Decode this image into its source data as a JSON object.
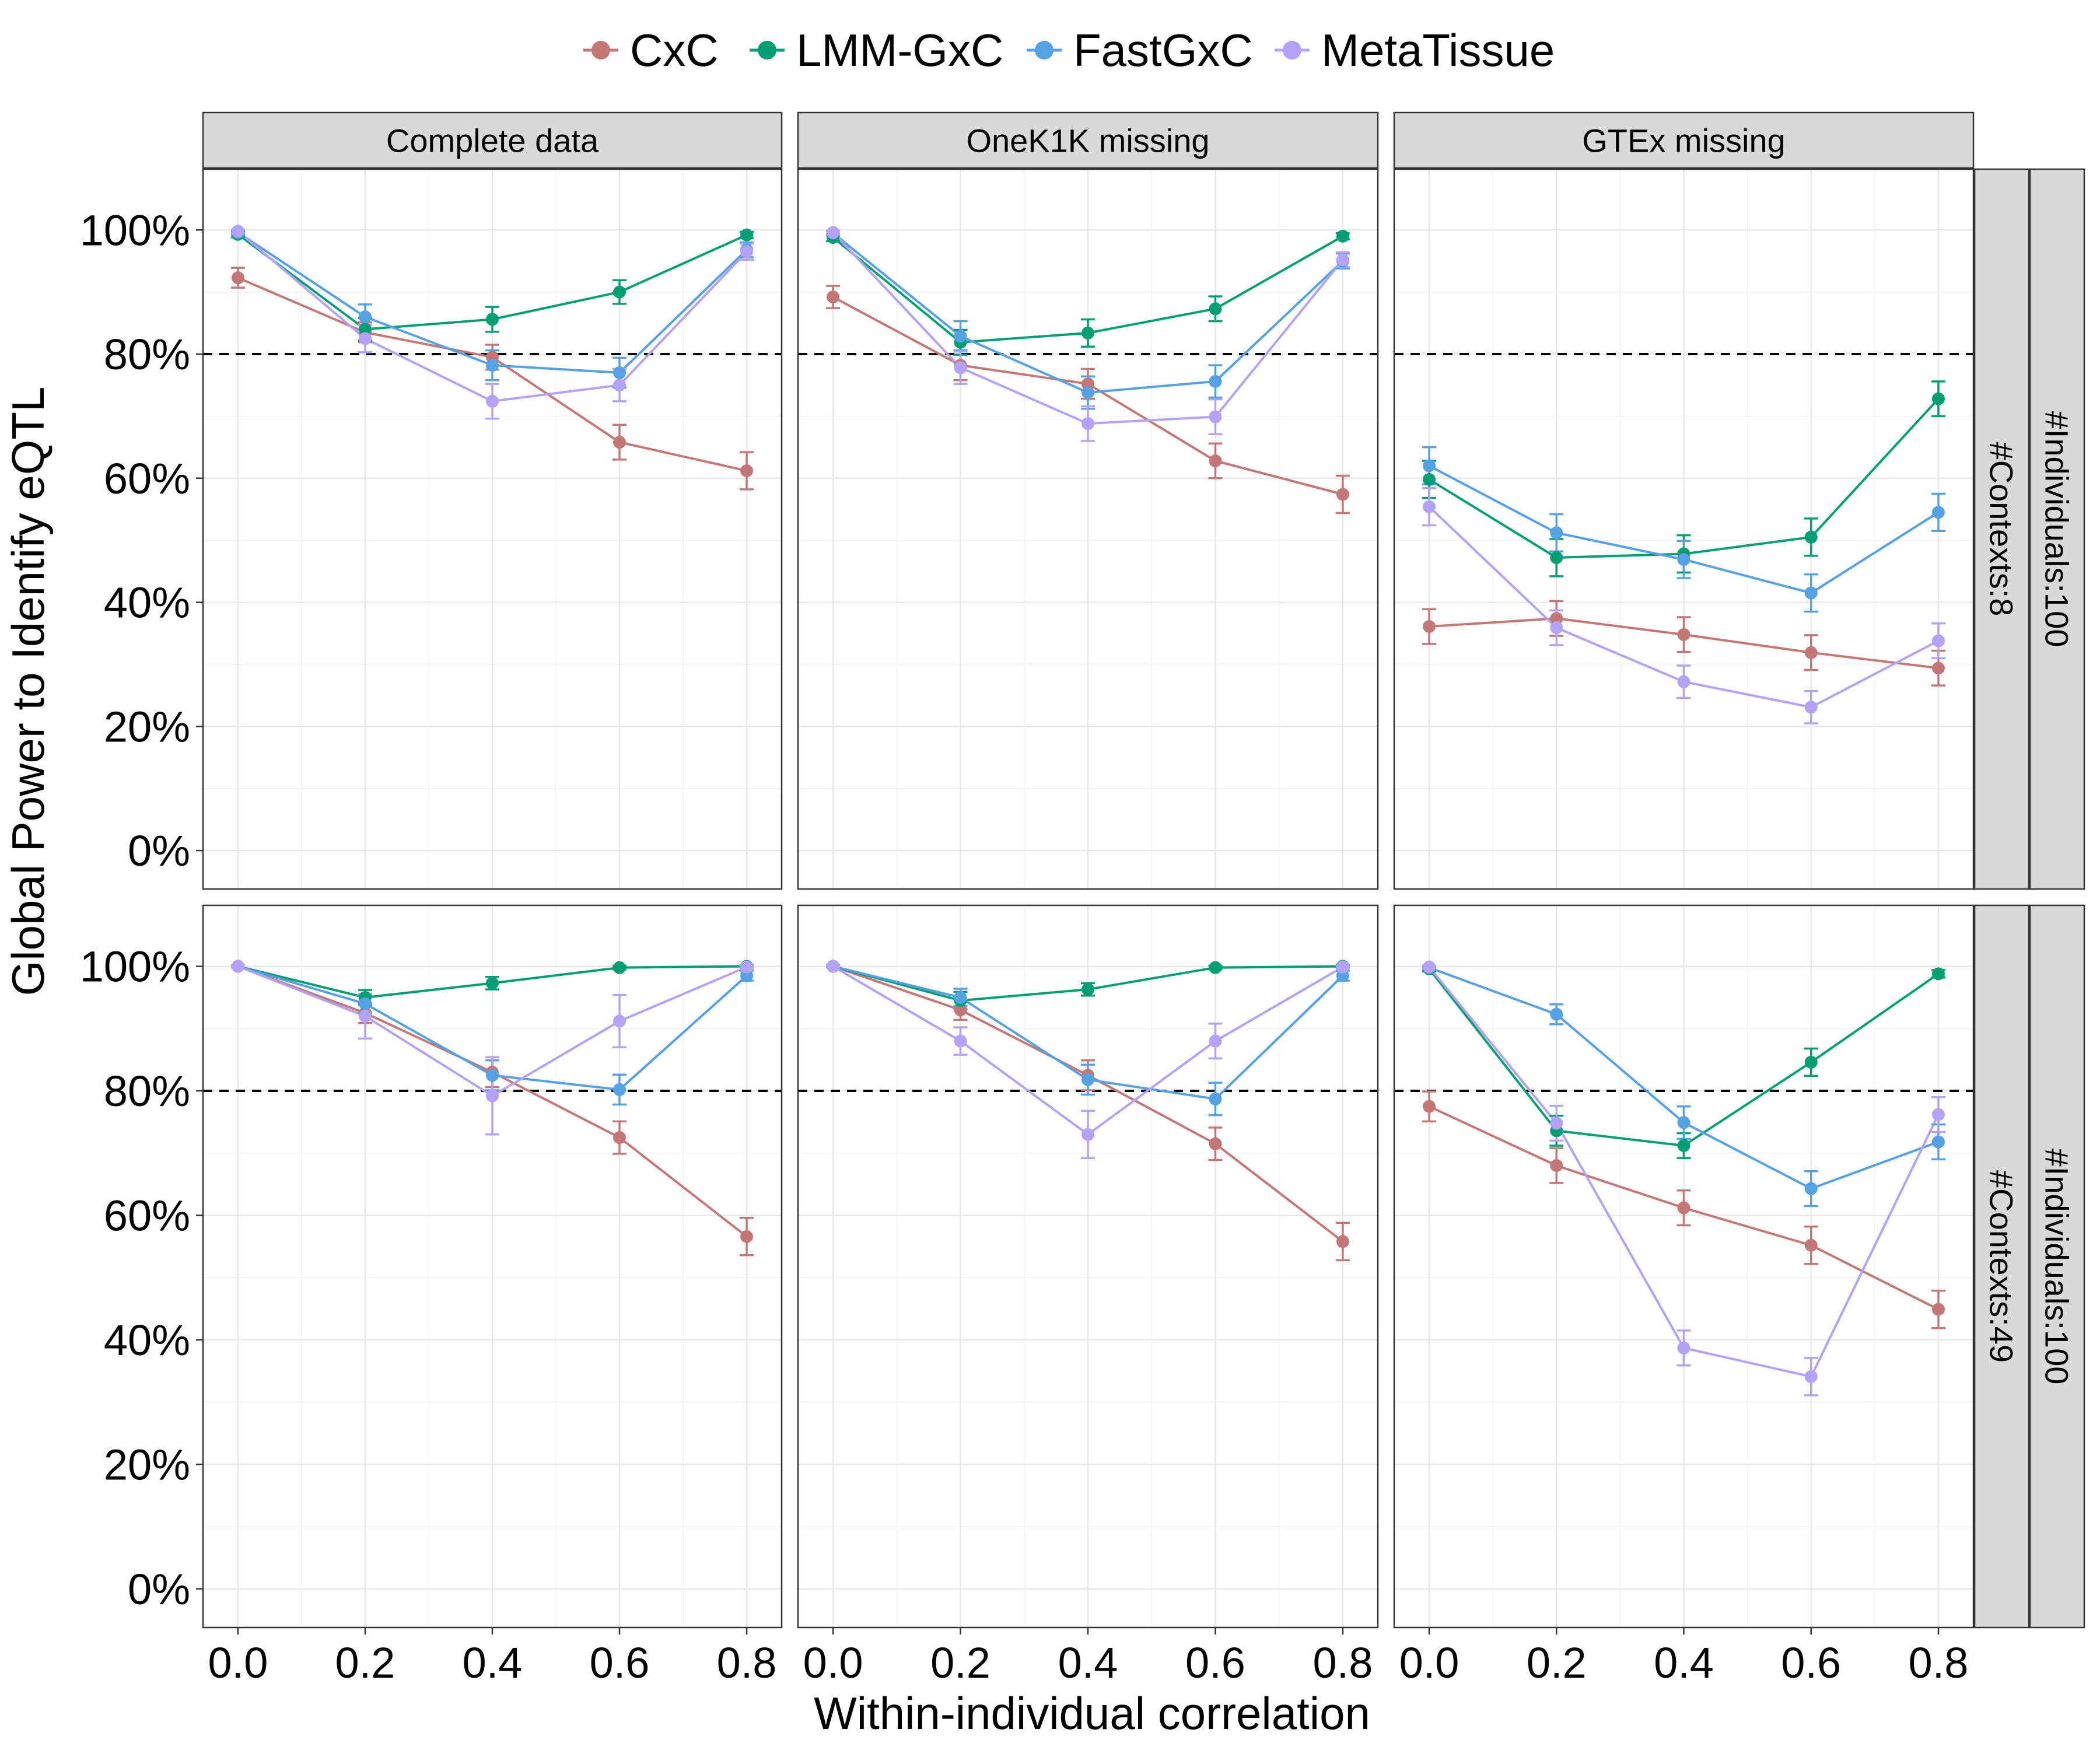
{
  "chart_data": {
    "type": "line",
    "xlabel": "Within-individual correlation",
    "ylabel": "Global Power to Identify eQTL",
    "x": [
      0.0,
      0.2,
      0.4,
      0.6,
      0.8
    ],
    "x_tick_labels": [
      "0.0",
      "0.2",
      "0.4",
      "0.6",
      "0.8"
    ],
    "ylim": [
      0,
      100
    ],
    "y_ticks": [
      0,
      20,
      40,
      60,
      80,
      100
    ],
    "y_tick_labels": [
      "0%",
      "20%",
      "40%",
      "60%",
      "80%",
      "100%"
    ],
    "reference_line": 80,
    "grid": true,
    "legend_position": "top",
    "legend": [
      "CxC",
      "LMM-GxC",
      "FastGxC",
      "MetaTissue"
    ],
    "colors": {
      "CxC": "#c47777",
      "LMM-GxC": "#009e73",
      "FastGxC": "#56a0e4",
      "MetaTissue": "#b3a2f5"
    },
    "columns": [
      "Complete data",
      "OneK1K missing",
      "GTEx missing"
    ],
    "rows": [
      {
        "inner_label": "#Contexts:8",
        "outer_label": "#Individuals:100"
      },
      {
        "inner_label": "#Contexts:49",
        "outer_label": "#Individuals:100"
      }
    ],
    "panels": [
      {
        "row": 0,
        "col": 0,
        "series": [
          {
            "name": "CxC",
            "values": [
              92.3,
              83.5,
              79.5,
              65.8,
              61.2
            ],
            "err": [
              1.6,
              1.6,
              2.0,
              2.8,
              3.0
            ]
          },
          {
            "name": "LMM-GxC",
            "values": [
              99.3,
              84.0,
              85.6,
              90.0,
              99.2
            ],
            "err": [
              0.5,
              1.8,
              2.0,
              1.9,
              0.5
            ]
          },
          {
            "name": "FastGxC",
            "values": [
              99.6,
              86.0,
              78.2,
              77.0,
              96.8
            ],
            "err": [
              0.4,
              2.0,
              2.4,
              2.4,
              1.2
            ]
          },
          {
            "name": "MetaTissue",
            "values": [
              99.8,
              82.5,
              72.4,
              75.0,
              96.5
            ],
            "err": [
              0.3,
              2.2,
              2.8,
              2.6,
              1.3
            ]
          }
        ]
      },
      {
        "row": 0,
        "col": 1,
        "series": [
          {
            "name": "CxC",
            "values": [
              89.2,
              78.2,
              75.2,
              62.8,
              57.4
            ],
            "err": [
              1.8,
              2.4,
              2.4,
              2.8,
              3.0
            ]
          },
          {
            "name": "LMM-GxC",
            "values": [
              98.8,
              81.9,
              83.4,
              87.3,
              99.0
            ],
            "err": [
              0.6,
              2.0,
              2.2,
              2.0,
              0.5
            ]
          },
          {
            "name": "FastGxC",
            "values": [
              99.5,
              82.9,
              73.8,
              75.6,
              95.0
            ],
            "err": [
              0.4,
              2.4,
              2.6,
              2.6,
              1.2
            ]
          },
          {
            "name": "MetaTissue",
            "values": [
              99.6,
              77.8,
              68.8,
              69.9,
              95.2
            ],
            "err": [
              0.3,
              2.6,
              2.8,
              2.8,
              1.2
            ]
          }
        ]
      },
      {
        "row": 0,
        "col": 2,
        "series": [
          {
            "name": "CxC",
            "values": [
              36.1,
              37.4,
              34.8,
              31.9,
              29.4
            ],
            "err": [
              2.8,
              2.8,
              2.8,
              2.8,
              2.8
            ]
          },
          {
            "name": "LMM-GxC",
            "values": [
              59.8,
              47.2,
              47.8,
              50.5,
              72.8
            ],
            "err": [
              3.0,
              3.0,
              3.0,
              3.0,
              2.8
            ]
          },
          {
            "name": "FastGxC",
            "values": [
              62.0,
              51.2,
              46.9,
              41.5,
              54.5
            ],
            "err": [
              3.0,
              3.0,
              3.0,
              3.0,
              3.0
            ]
          },
          {
            "name": "MetaTissue",
            "values": [
              55.4,
              35.9,
              27.2,
              23.1,
              33.8
            ],
            "err": [
              3.0,
              2.8,
              2.6,
              2.6,
              2.8
            ]
          }
        ]
      },
      {
        "row": 1,
        "col": 0,
        "series": [
          {
            "name": "CxC",
            "values": [
              100.0,
              92.5,
              83.0,
              72.5,
              56.6
            ],
            "err": [
              0.2,
              1.6,
              2.4,
              2.6,
              3.0
            ]
          },
          {
            "name": "LMM-GxC",
            "values": [
              100.0,
              95.0,
              97.3,
              99.8,
              100.0
            ],
            "err": [
              0.2,
              1.2,
              1.0,
              0.3,
              0.2
            ]
          },
          {
            "name": "FastGxC",
            "values": [
              100.0,
              94.0,
              82.5,
              80.2,
              98.5
            ],
            "err": [
              0.2,
              1.4,
              2.4,
              2.4,
              0.8
            ]
          },
          {
            "name": "MetaTissue",
            "values": [
              100.0,
              92.0,
              79.2,
              91.2,
              99.9
            ],
            "err": [
              0.2,
              3.6,
              6.2,
              4.2,
              0.2
            ]
          }
        ]
      },
      {
        "row": 1,
        "col": 1,
        "series": [
          {
            "name": "CxC",
            "values": [
              100.0,
              93.0,
              82.5,
              71.5,
              55.8
            ],
            "err": [
              0.2,
              1.6,
              2.4,
              2.6,
              3.0
            ]
          },
          {
            "name": "LMM-GxC",
            "values": [
              100.0,
              94.5,
              96.3,
              99.8,
              100.0
            ],
            "err": [
              0.2,
              1.4,
              1.0,
              0.3,
              0.2
            ]
          },
          {
            "name": "FastGxC",
            "values": [
              100.0,
              95.0,
              81.8,
              78.7,
              98.5
            ],
            "err": [
              0.2,
              1.4,
              2.4,
              2.6,
              0.8
            ]
          },
          {
            "name": "MetaTissue",
            "values": [
              100.0,
              88.0,
              73.0,
              88.0,
              99.9
            ],
            "err": [
              0.2,
              2.2,
              3.8,
              2.8,
              0.2
            ]
          }
        ]
      },
      {
        "row": 1,
        "col": 2,
        "series": [
          {
            "name": "CxC",
            "values": [
              77.5,
              68.0,
              61.2,
              55.2,
              44.9
            ],
            "err": [
              2.4,
              2.8,
              2.8,
              3.0,
              3.0
            ]
          },
          {
            "name": "LMM-GxC",
            "values": [
              99.6,
              73.6,
              71.2,
              84.6,
              98.8
            ],
            "err": [
              0.4,
              2.4,
              2.0,
              2.2,
              0.6
            ]
          },
          {
            "name": "FastGxC",
            "values": [
              99.8,
              92.3,
              74.9,
              64.3,
              71.8
            ],
            "err": [
              0.3,
              1.6,
              2.6,
              2.8,
              2.8
            ]
          },
          {
            "name": "MetaTissue",
            "values": [
              99.9,
              74.8,
              38.7,
              34.1,
              76.2
            ],
            "err": [
              0.2,
              2.8,
              2.8,
              3.0,
              2.8
            ]
          }
        ]
      }
    ]
  }
}
